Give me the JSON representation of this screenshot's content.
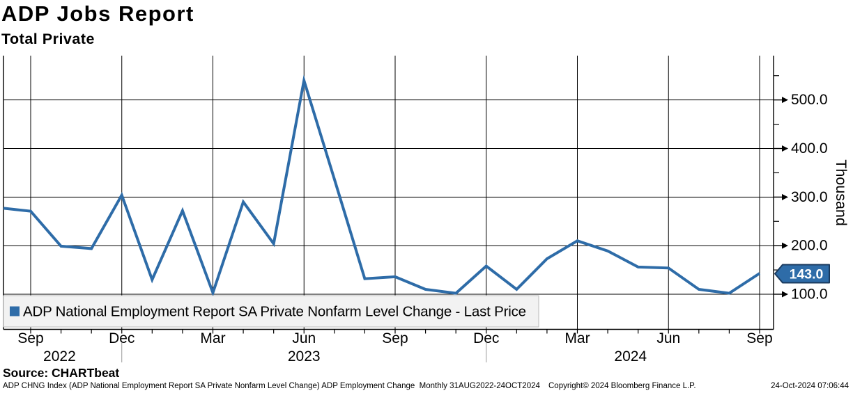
{
  "header": {
    "title": "ADP Jobs Report",
    "subtitle": "Total Private"
  },
  "legend": {
    "label": "ADP National Employment Report SA Private Nonfarm Level Change - Last Price"
  },
  "axis": {
    "y_title": "Thousand",
    "last_price_label": "143.0"
  },
  "source": {
    "label": "Source: CHARTbeat"
  },
  "footer": {
    "left": "ADP CHNG Index (ADP National Employment Report SA Private Nonfarm Level Change) ADP Employment Change  Monthly 31AUG2022-24OCT2024",
    "center": "Copyright© 2024 Bloomberg Finance L.P.",
    "right": "24-Oct-2024 07:06:44"
  },
  "colors": {
    "line": "#2e6ca8",
    "tag_fill": "#2e6ca8",
    "tag_border": "#1a3a5e",
    "grid": "#000000",
    "legend_bg": "#f2f2f2",
    "legend_border": "#bbbbbb",
    "year_separator": "#999999"
  },
  "chart_data": {
    "type": "line",
    "title": "ADP Jobs Report",
    "subtitle": "Total Private",
    "ylabel": "Thousand",
    "grid": true,
    "legend_position": "bottom-left",
    "last_price": 143.0,
    "x": [
      "Aug 2022",
      "Sep 2022",
      "Oct 2022",
      "Nov 2022",
      "Dec 2022",
      "Jan 2023",
      "Feb 2023",
      "Mar 2023",
      "Apr 2023",
      "May 2023",
      "Jun 2023",
      "Jul 2023",
      "Aug 2023",
      "Sep 2023",
      "Oct 2023",
      "Nov 2023",
      "Dec 2023",
      "Jan 2024",
      "Feb 2024",
      "Mar 2024",
      "Apr 2024",
      "May 2024",
      "Jun 2024",
      "Jul 2024",
      "Aug 2024",
      "Sep 2024"
    ],
    "series": [
      {
        "name": "ADP National Employment Report SA Private Nonfarm Level Change - Last Price",
        "color": "#2e6ca8",
        "values": [
          277,
          271,
          199,
          194,
          304,
          130,
          272,
          103,
          290,
          204,
          540,
          337,
          132,
          136,
          110,
          102,
          158,
          110,
          173,
          210,
          189,
          156,
          154,
          110,
          102,
          143
        ]
      }
    ],
    "y_ticks": [
      100,
      200,
      300,
      400,
      500
    ],
    "y_minor_ticks": [
      150,
      250,
      350,
      450,
      550
    ],
    "ylim": [
      28,
      591
    ],
    "x_tick_labels": [
      {
        "index": 1,
        "label": "Sep"
      },
      {
        "index": 4,
        "label": "Dec"
      },
      {
        "index": 7,
        "label": "Mar"
      },
      {
        "index": 10,
        "label": "Jun"
      },
      {
        "index": 13,
        "label": "Sep"
      },
      {
        "index": 16,
        "label": "Dec"
      },
      {
        "index": 19,
        "label": "Mar"
      },
      {
        "index": 22,
        "label": "Jun"
      },
      {
        "index": 25,
        "label": "Sep"
      }
    ],
    "year_labels": [
      {
        "label": "2022",
        "x_index": 1.95
      },
      {
        "label": "2023",
        "x_index": 10.0
      },
      {
        "label": "2024",
        "x_index": 20.75
      }
    ],
    "year_separator_indices": [
      4,
      16
    ]
  }
}
